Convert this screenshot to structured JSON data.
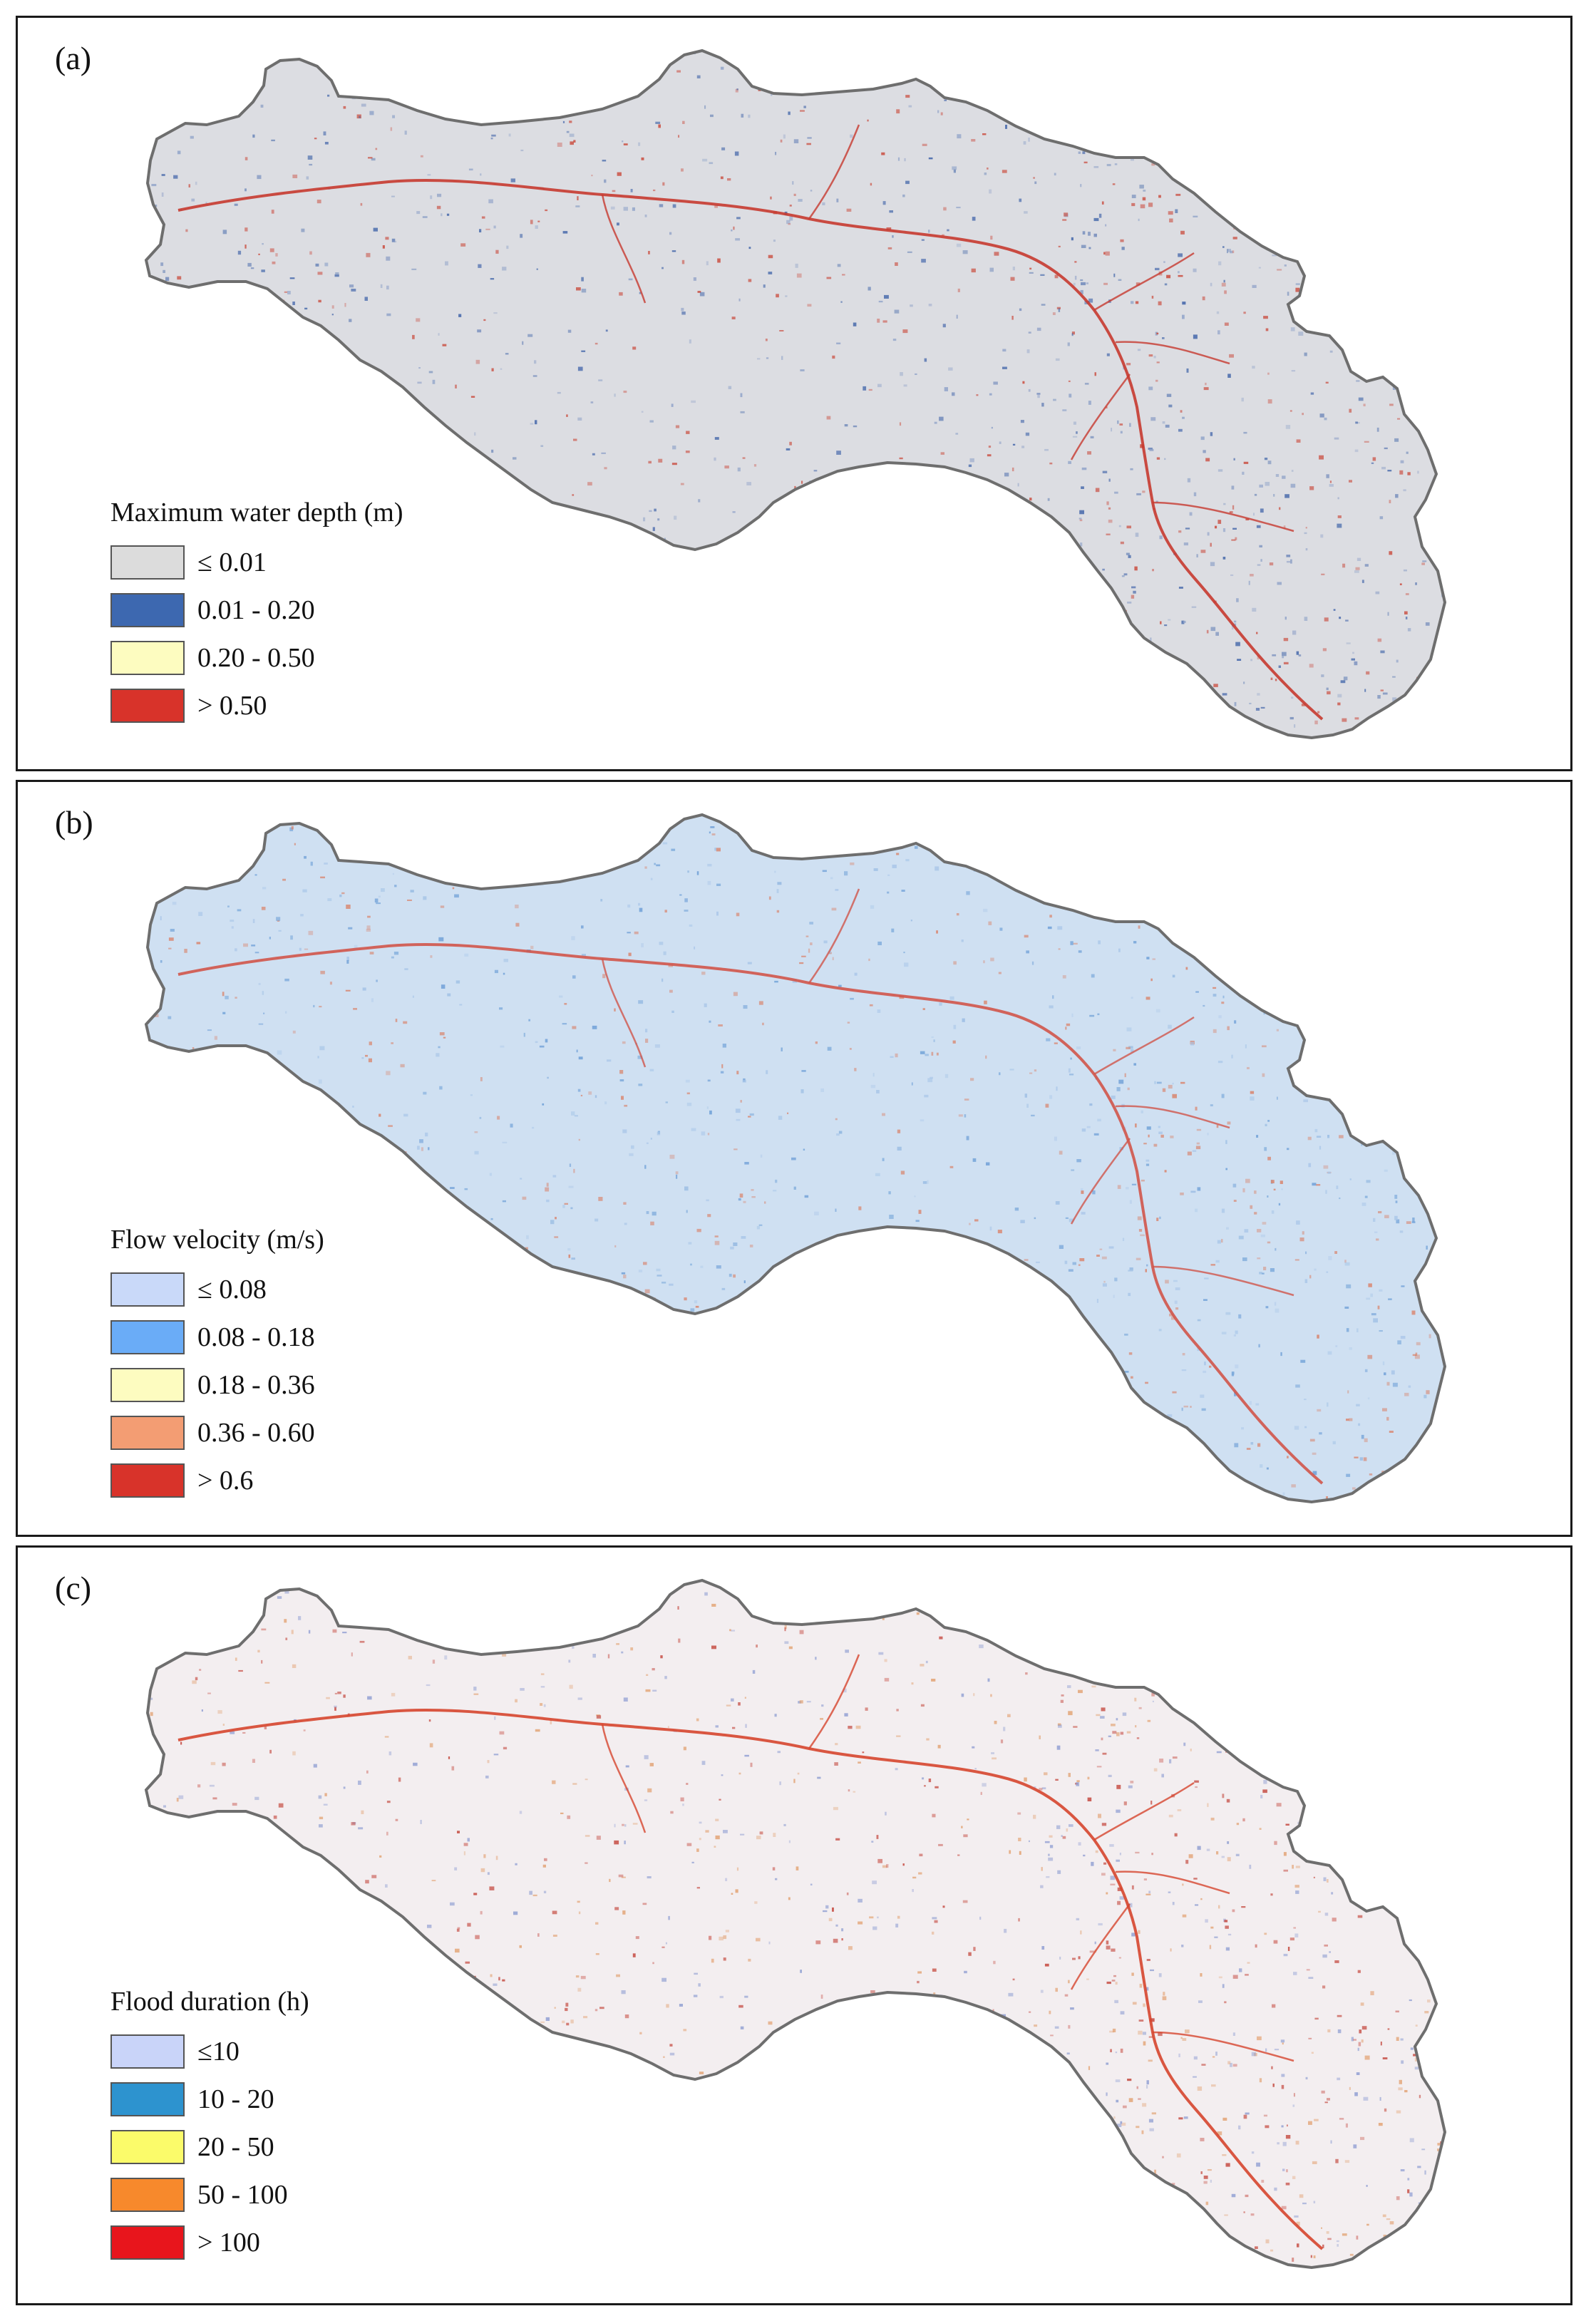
{
  "panels": [
    {
      "label": "(a)",
      "legend_title": "Maximum water depth (m)",
      "fill": "#dcdde2",
      "speckle": [
        "#3f63a8",
        "#c94a3c",
        "#8fa2c8"
      ],
      "items": [
        {
          "label": "≤ 0.01",
          "color": "#dcdcdc"
        },
        {
          "label": "0.01 - 0.20",
          "color": "#3d68b0"
        },
        {
          "label": "0.20 - 0.50",
          "color": "#fdfcc0"
        },
        {
          "label": "> 0.50",
          "color": "#d8332a"
        }
      ]
    },
    {
      "label": "(b)",
      "legend_title": "Flow velocity (m/s)",
      "fill": "#cfe0f2",
      "speckle": [
        "#6c9ed6",
        "#d9836b",
        "#a9c6e8"
      ],
      "items": [
        {
          "label": "≤ 0.08",
          "color": "#c9d9f9"
        },
        {
          "label": "0.08 - 0.18",
          "color": "#6aacf7"
        },
        {
          "label": "0.18 - 0.36",
          "color": "#fdfcc0"
        },
        {
          "label": "0.36 - 0.60",
          "color": "#f39d73"
        },
        {
          "label": "> 0.6",
          "color": "#d8332a"
        }
      ]
    },
    {
      "label": "(c)",
      "legend_title": "Flood duration (h)",
      "fill": "#f3eef0",
      "speckle": [
        "#c4473d",
        "#8f9ed2",
        "#e2a273"
      ],
      "items": [
        {
          "label": "≤10",
          "color": "#c9d4f9"
        },
        {
          "label": "10 - 20",
          "color": "#2d93cf"
        },
        {
          "label": "20 - 50",
          "color": "#fbfb6a"
        },
        {
          "label": "50 - 100",
          "color": "#f7892c"
        },
        {
          "label": "> 100",
          "color": "#e8151c"
        }
      ]
    }
  ]
}
